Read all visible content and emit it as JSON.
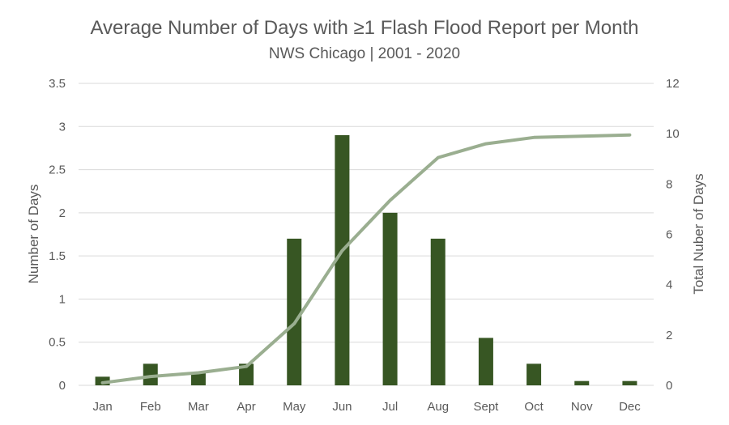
{
  "chart_data": {
    "type": "bar+line",
    "title": "Average Number of Days with ≥1 Flash Flood Report per Month",
    "subtitle": "NWS Chicago | 2001 - 2020",
    "categories": [
      "Jan",
      "Feb",
      "Mar",
      "Apr",
      "May",
      "Jun",
      "Jul",
      "Aug",
      "Sept",
      "Oct",
      "Nov",
      "Dec"
    ],
    "bar_series": {
      "axis": "left",
      "values": [
        0.1,
        0.25,
        0.15,
        0.25,
        1.7,
        2.9,
        2.0,
        1.7,
        0.55,
        0.25,
        0.05,
        0.05
      ],
      "color": "#375623"
    },
    "line_series": {
      "axis": "right",
      "values": [
        0.1,
        0.35,
        0.5,
        0.75,
        2.45,
        5.35,
        7.35,
        9.05,
        9.6,
        9.85,
        9.9,
        9.95
      ],
      "color": "#9aae90"
    },
    "left_axis": {
      "label": "Number of Days",
      "ylim": [
        0,
        3.5
      ],
      "ticks": [
        "0",
        "0.5",
        "1",
        "1.5",
        "2",
        "2.5",
        "3",
        "3.5"
      ]
    },
    "right_axis": {
      "label": "Total Nuber of Days",
      "ylim": [
        0,
        12
      ],
      "ticks": [
        "0",
        "2",
        "4",
        "6",
        "8",
        "10",
        "12"
      ]
    },
    "grid": true,
    "gridline_color": "#d9d9d9"
  }
}
